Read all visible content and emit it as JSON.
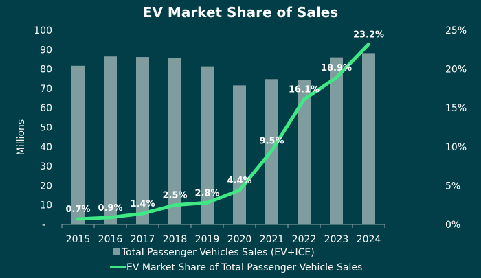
{
  "chart_data": {
    "type": "bar+line",
    "title": "EV Market Share of Sales",
    "ylabel": "Millions",
    "categories": [
      "2015",
      "2016",
      "2017",
      "2018",
      "2019",
      "2020",
      "2021",
      "2022",
      "2023",
      "2024"
    ],
    "y_left": {
      "range": [
        0,
        100
      ],
      "ticks": [
        "-",
        "10",
        "20",
        "30",
        "40",
        "50",
        "60",
        "70",
        "80",
        "90",
        "100"
      ]
    },
    "y_right": {
      "range": [
        0,
        25
      ],
      "ticks": [
        "0%",
        "5%",
        "10%",
        "15%",
        "20%",
        "25%"
      ]
    },
    "series": [
      {
        "name": "Total Passenger Vehicles Sales (EV+ICE)",
        "type": "bar",
        "axis": "left",
        "values": [
          81.7,
          86.5,
          86.2,
          85.7,
          81.4,
          71.6,
          74.8,
          74.2,
          86.0,
          88.2
        ],
        "color": "#7f9c9e"
      },
      {
        "name": "EV Market Share of Total Passenger Vehicle Sales",
        "type": "line",
        "axis": "right",
        "values": [
          0.7,
          0.9,
          1.4,
          2.5,
          2.8,
          4.4,
          9.5,
          16.1,
          18.9,
          23.2
        ],
        "labels": [
          "0.7%",
          "0.9%",
          "1.4%",
          "2.5%",
          "2.8%",
          "4.4%",
          "9.5%",
          "16.1%",
          "18.9%",
          "23.2%"
        ],
        "color": "#3fe884"
      }
    ],
    "grid": false,
    "legend": "bottom",
    "background": "#023e47"
  }
}
